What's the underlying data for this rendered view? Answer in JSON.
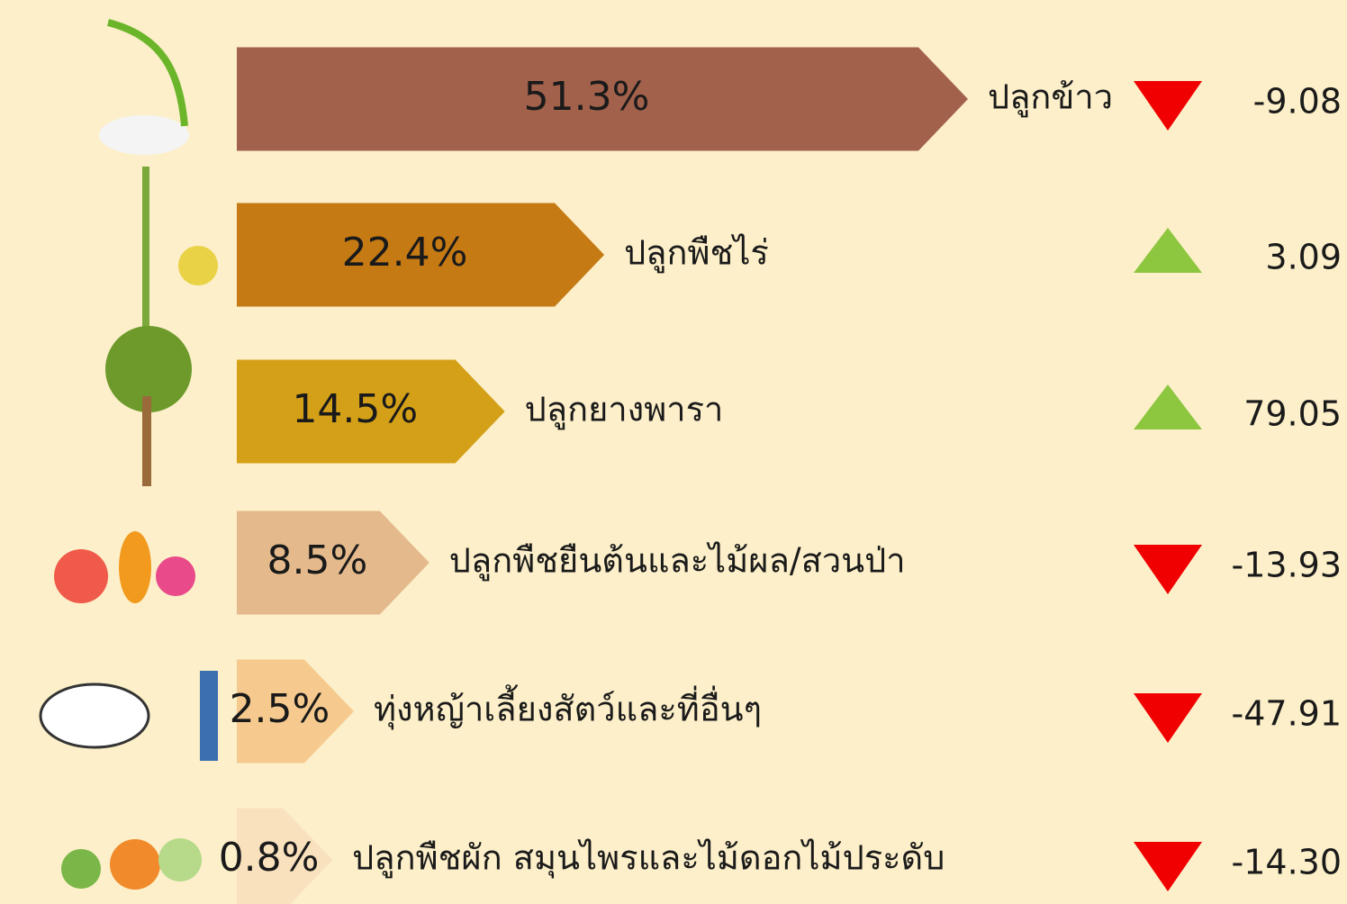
{
  "chart_data": {
    "type": "bar",
    "orientation": "horizontal",
    "categories": [
      "ปลูกข้าว",
      "ปลูกพืชไร่",
      "ปลูกยางพารา",
      "ปลูกพืชยืนต้นและไม้ผล/สวนป่า",
      "ทุ่งหญ้าเลี้ยงสัตว์และที่อื่นๆ",
      "ปลูกพืชผัก สมุนไพรและไม้ดอกไม้ประดับ"
    ],
    "values": [
      51.3,
      22.4,
      14.5,
      8.5,
      2.5,
      0.8
    ],
    "value_labels": [
      "51.3%",
      "22.4%",
      "14.5%",
      "8.5%",
      "2.5%",
      "0.8%"
    ],
    "colors": [
      "#a2614b",
      "#c67a14",
      "#d4a017",
      "#e4b98b",
      "#f6ca8e",
      "#f9e1bd"
    ],
    "change_values": [
      -9.08,
      3.09,
      79.05,
      -13.93,
      -47.91,
      -14.3
    ],
    "change_labels": [
      "-9.08",
      "3.09",
      "79.05",
      "-13.93",
      "-47.91",
      "-14.30"
    ],
    "up_color": "#8dc63f",
    "down_color": "#f00000"
  }
}
